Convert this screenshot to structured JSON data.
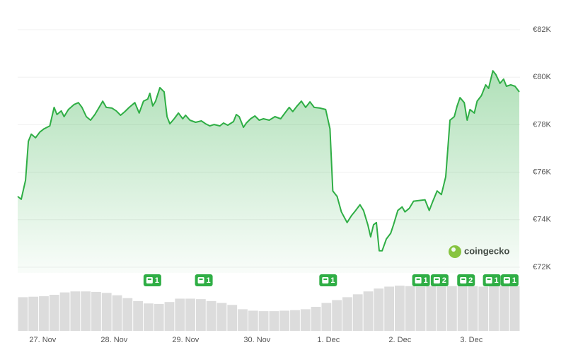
{
  "chart_data": {
    "type": "line",
    "x": [
      -0.35,
      -0.3,
      -0.24,
      -0.2,
      -0.16,
      -0.1,
      -0.04,
      0.02,
      0.1,
      0.16,
      0.2,
      0.26,
      0.3,
      0.36,
      0.44,
      0.5,
      0.55,
      0.61,
      0.67,
      0.73,
      0.79,
      0.84,
      0.89,
      0.97,
      1.03,
      1.09,
      1.15,
      1.21,
      1.29,
      1.35,
      1.41,
      1.47,
      1.5,
      1.54,
      1.58,
      1.64,
      1.7,
      1.74,
      1.78,
      1.84,
      1.9,
      1.96,
      2.0,
      2.06,
      2.14,
      2.22,
      2.28,
      2.34,
      2.4,
      2.48,
      2.53,
      2.59,
      2.67,
      2.71,
      2.75,
      2.81,
      2.85,
      2.91,
      2.97,
      3.03,
      3.09,
      3.17,
      3.25,
      3.33,
      3.39,
      3.45,
      3.5,
      3.56,
      3.62,
      3.68,
      3.74,
      3.8,
      3.88,
      3.96,
      4.02,
      4.06,
      4.12,
      4.18,
      4.26,
      4.32,
      4.38,
      4.44,
      4.49,
      4.55,
      4.59,
      4.63,
      4.67,
      4.71,
      4.75,
      4.81,
      4.87,
      4.91,
      4.97,
      5.03,
      5.07,
      5.13,
      5.19,
      5.27,
      5.35,
      5.41,
      5.46,
      5.52,
      5.58,
      5.64,
      5.7,
      5.76,
      5.8,
      5.84,
      5.9,
      5.94,
      5.98,
      6.04,
      6.08,
      6.14,
      6.2,
      6.24,
      6.3,
      6.34,
      6.4,
      6.45,
      6.49,
      6.55,
      6.61,
      6.67
    ],
    "values": [
      74980,
      74860,
      75660,
      77300,
      77600,
      77450,
      77690,
      77830,
      77950,
      78730,
      78430,
      78580,
      78340,
      78640,
      78850,
      78930,
      78730,
      78340,
      78190,
      78430,
      78730,
      78990,
      78730,
      78700,
      78580,
      78400,
      78550,
      78730,
      78930,
      78490,
      78990,
      79080,
      79320,
      78790,
      78990,
      79560,
      79380,
      78340,
      78040,
      78250,
      78490,
      78250,
      78400,
      78190,
      78100,
      78160,
      78040,
      77950,
      78010,
      77950,
      78070,
      77980,
      78130,
      78430,
      78340,
      77890,
      78070,
      78250,
      78370,
      78190,
      78250,
      78190,
      78340,
      78250,
      78490,
      78730,
      78550,
      78790,
      78990,
      78730,
      78960,
      78730,
      78700,
      78640,
      77830,
      75210,
      74980,
      74330,
      73880,
      74170,
      74390,
      74630,
      74390,
      73790,
      73280,
      73790,
      73880,
      72690,
      72690,
      73190,
      73430,
      73790,
      74390,
      74540,
      74330,
      74480,
      74780,
      74810,
      74840,
      74390,
      74780,
      75210,
      75060,
      75810,
      78190,
      78340,
      78790,
      79140,
      78930,
      78190,
      78640,
      78490,
      78990,
      79230,
      79680,
      79530,
      80270,
      80120,
      79740,
      79920,
      79620,
      79680,
      79620,
      79380
    ],
    "color": "#2fae45",
    "xlim": [
      -0.35,
      6.68
    ],
    "xticks": [
      {
        "value": 0,
        "label": "27. Nov"
      },
      {
        "value": 1,
        "label": "28. Nov"
      },
      {
        "value": 2,
        "label": "29. Nov"
      },
      {
        "value": 3,
        "label": "30. Nov"
      },
      {
        "value": 4,
        "label": "1. Dec"
      },
      {
        "value": 5,
        "label": "2. Dec"
      },
      {
        "value": 6,
        "label": "3. Dec"
      }
    ],
    "ylim": [
      72000,
      82000
    ],
    "yticks": [
      {
        "value": 72000,
        "label": "€72K"
      },
      {
        "value": 74000,
        "label": "€74K"
      },
      {
        "value": 76000,
        "label": "€76K"
      },
      {
        "value": 78000,
        "label": "€78K"
      },
      {
        "value": 80000,
        "label": "€80K"
      },
      {
        "value": 82000,
        "label": "€82K"
      }
    ],
    "grid": true,
    "volume": {
      "values": [
        70,
        71,
        72,
        75,
        80,
        82,
        82,
        81,
        79,
        74,
        68,
        62,
        57,
        56,
        60,
        67,
        67,
        66,
        62,
        58,
        54,
        45,
        42,
        41,
        41,
        42,
        43,
        45,
        50,
        58,
        64,
        70,
        76,
        82,
        88,
        92,
        94,
        93,
        92,
        93,
        92,
        93,
        94,
        93,
        92,
        93,
        94,
        93
      ],
      "ylim": [
        0,
        100
      ],
      "color": "#dcdcdc"
    },
    "events": [
      {
        "x": 1.53,
        "count": 1
      },
      {
        "x": 2.25,
        "count": 1
      },
      {
        "x": 3.99,
        "count": 1
      },
      {
        "x": 5.29,
        "count": 1
      },
      {
        "x": 5.55,
        "count": 2
      },
      {
        "x": 5.92,
        "count": 2
      },
      {
        "x": 6.28,
        "count": 1
      },
      {
        "x": 6.53,
        "count": 1
      }
    ],
    "watermark": "coingecko"
  }
}
